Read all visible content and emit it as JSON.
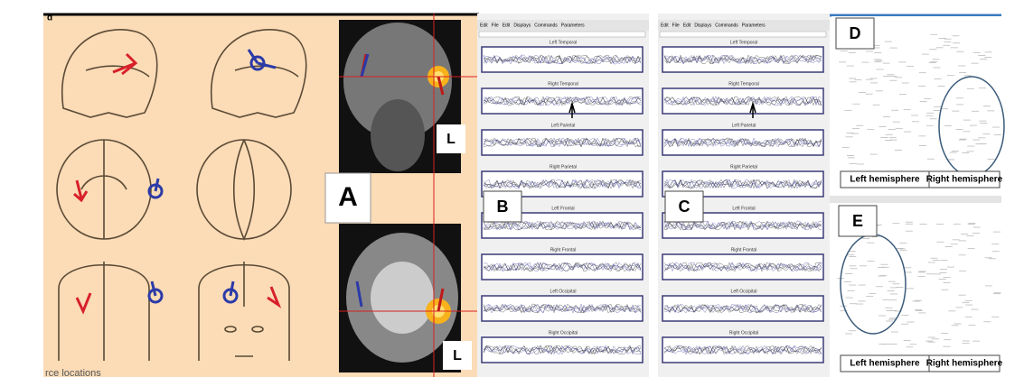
{
  "panel_a": {
    "corner_label": "d",
    "label": "A",
    "orientation_labels": [
      "L",
      "L"
    ],
    "caption": "rce locations"
  },
  "panel_b": {
    "label": "B",
    "menu": [
      "Edit",
      "File",
      "Edit",
      "Displays",
      "Commands",
      "Parameters"
    ],
    "channels": [
      "Left Temporal",
      "Right Temporal",
      "Left Parietal",
      "Right Parietal",
      "Left Frontal",
      "Right Frontal",
      "Left Occipital",
      "Right Occipital"
    ]
  },
  "panel_c": {
    "label": "C",
    "menu": [
      "Edit",
      "File",
      "Edit",
      "Displays",
      "Commands",
      "Parameters"
    ],
    "channels": [
      "Left Temporal",
      "Right Temporal",
      "Left Parietal",
      "Right Parietal",
      "Left Frontal",
      "Right Frontal",
      "Left Occipital",
      "Right Occipital"
    ]
  },
  "panel_d": {
    "label": "D",
    "hemispheres": [
      "Left hemisphere",
      "Right hemisphere"
    ]
  },
  "panel_e": {
    "label": "E",
    "hemispheres": [
      "Left hemisphere",
      "Right hemisphere"
    ]
  }
}
